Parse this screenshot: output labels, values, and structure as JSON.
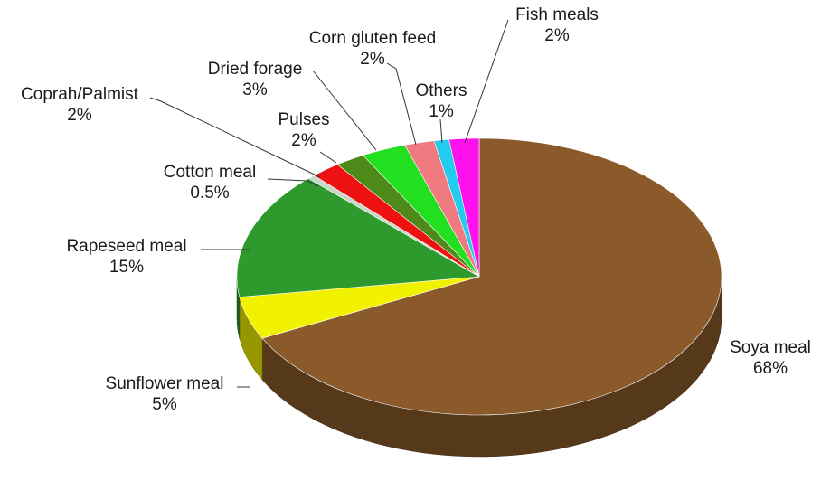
{
  "chart_data": {
    "type": "pie",
    "title": "",
    "slices": [
      {
        "label": "Soya meal",
        "value": 68,
        "value_label": "68%",
        "color": "#8b5a2b"
      },
      {
        "label": "Sunflower meal",
        "value": 5,
        "value_label": "5%",
        "color": "#f2f200"
      },
      {
        "label": "Rapeseed meal",
        "value": 15,
        "value_label": "15%",
        "color": "#2e9a2e"
      },
      {
        "label": "Cotton meal",
        "value": 0.5,
        "value_label": "0.5%",
        "color": "#c8d8c8"
      },
      {
        "label": "Coprah/Palmist",
        "value": 2,
        "value_label": "2%",
        "color": "#ee1111"
      },
      {
        "label": "Pulses",
        "value": 2,
        "value_label": "2%",
        "color": "#4d8a1a"
      },
      {
        "label": "Dried forage",
        "value": 3,
        "value_label": "3%",
        "color": "#22e01f"
      },
      {
        "label": "Corn gluten feed",
        "value": 2,
        "value_label": "2%",
        "color": "#f07a80"
      },
      {
        "label": "Others",
        "value": 1,
        "value_label": "1%",
        "color": "#22ccee"
      },
      {
        "label": "Fish meals",
        "value": 2,
        "value_label": "2%",
        "color": "#ff11ee"
      }
    ],
    "start_angle_deg": 90,
    "direction": "clockwise",
    "style": "3d"
  }
}
